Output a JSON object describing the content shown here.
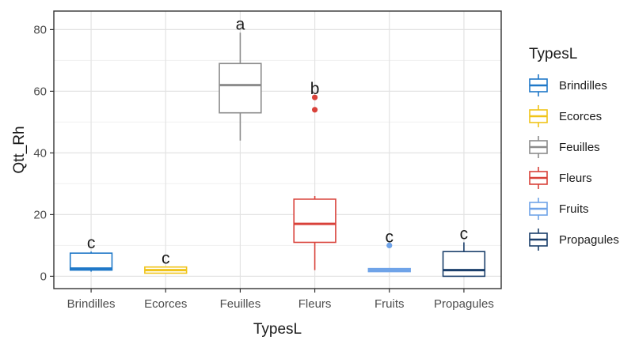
{
  "chart_data": {
    "type": "box",
    "xlabel": "TypesL",
    "ylabel": "Qtt_Rh",
    "ylim": [
      -4,
      86
    ],
    "yticks": [
      0,
      20,
      40,
      60,
      80
    ],
    "grid": true,
    "legend": {
      "title": "TypesL",
      "placement": "right"
    },
    "categories": [
      "Brindilles",
      "Ecorces",
      "Feuilles",
      "Fleurs",
      "Fruits",
      "Propagules"
    ],
    "series": [
      {
        "name": "Brindilles",
        "color": "#1f78c8",
        "min": 1.5,
        "q1": 2,
        "median": 2.5,
        "q3": 7.5,
        "max": 8,
        "outliers": [],
        "letter": "c"
      },
      {
        "name": "Ecorces",
        "color": "#f0c419",
        "min": 1,
        "q1": 1,
        "median": 2,
        "q3": 3,
        "max": 3,
        "outliers": [],
        "letter": "c"
      },
      {
        "name": "Feuilles",
        "color": "#8c8c8c",
        "min": 44,
        "q1": 53,
        "median": 62,
        "q3": 69,
        "max": 79,
        "outliers": [],
        "letter": "a"
      },
      {
        "name": "Fleurs",
        "color": "#d9423a",
        "min": 2,
        "q1": 11,
        "median": 17,
        "q3": 25,
        "max": 26,
        "outliers": [
          54,
          58
        ],
        "letter": "b"
      },
      {
        "name": "Fruits",
        "color": "#6fa3e8",
        "min": 1.5,
        "q1": 1.5,
        "median": 2,
        "q3": 2.5,
        "max": 2.5,
        "outliers": [
          10
        ],
        "letter": "c"
      },
      {
        "name": "Propagules",
        "color": "#1b3f6b",
        "min": 0,
        "q1": 0,
        "median": 2,
        "q3": 8,
        "max": 11,
        "outliers": [],
        "letter": "c"
      }
    ]
  }
}
